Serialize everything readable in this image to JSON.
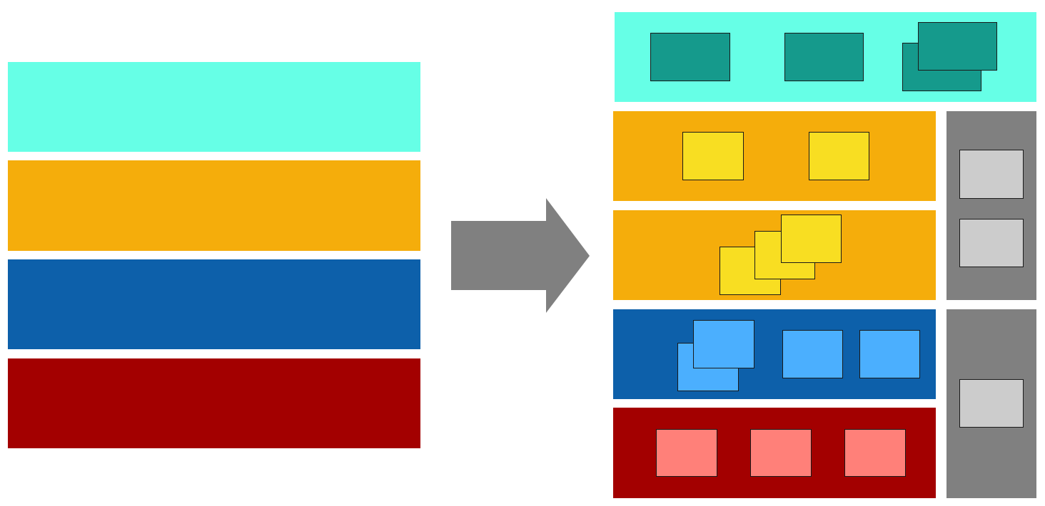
{
  "colors": {
    "teal_band": "#66FFE6",
    "teal_box": "#159A8C",
    "orange_band": "#F5AD0B",
    "yellow_box": "#F8DE22",
    "blue_band": "#0D60AA",
    "light_blue_box": "#4BAFFE",
    "red_band": "#A30000",
    "pink_box": "#FF8079",
    "gray_panel": "#808080",
    "light_gray_box": "#CCCCCC",
    "arrow": "#808080"
  },
  "diagram": {
    "left_layers": [
      "teal",
      "orange",
      "blue",
      "red"
    ],
    "right_layers": [
      {
        "color": "teal",
        "box_groups": [
          1,
          1,
          2
        ]
      },
      {
        "color": "orange",
        "box_groups": [
          1,
          1
        ]
      },
      {
        "color": "orange",
        "box_groups": [
          3
        ]
      },
      {
        "color": "blue",
        "box_groups": [
          2,
          1,
          1
        ]
      },
      {
        "color": "red",
        "box_groups": [
          1,
          1,
          1
        ]
      }
    ],
    "side_panels": [
      {
        "color": "gray",
        "boxes": 2
      },
      {
        "color": "gray",
        "boxes": 1
      }
    ],
    "arrow_direction": "right"
  }
}
